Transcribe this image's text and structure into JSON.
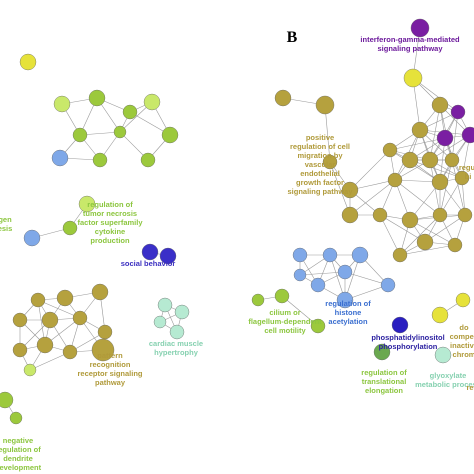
{
  "panel_label": "B",
  "labels": [
    {
      "lines": [
        "regulation of",
        "tumor necrosis",
        "factor superfamily",
        "cytokine",
        "production"
      ],
      "color": "#8cc63f"
    },
    {
      "lines": [
        "gen",
        "esis"
      ],
      "color": "#8cc63f"
    },
    {
      "lines": [
        "social behavior"
      ],
      "color": "#3b2fc0"
    },
    {
      "lines": [
        "cardiac muscle",
        "hypertrophy"
      ],
      "color": "#86d1b0"
    },
    {
      "lines": [
        "pattern",
        "recognition",
        "receptor signaling",
        "pathway"
      ],
      "color": "#b09a3a"
    },
    {
      "lines": [
        "negative",
        "regulation of",
        "dendrite",
        "development"
      ],
      "color": "#8cc63f"
    },
    {
      "lines": [
        "interferon-gamma-mediated",
        "signaling pathway"
      ],
      "color": "#6d1b9c"
    },
    {
      "lines": [
        "positive",
        "regulation of cell",
        "migration by",
        "vascular",
        "endothelial",
        "growth factor",
        "signaling pathway"
      ],
      "color": "#b09a3a"
    },
    {
      "lines": [
        "regulation of",
        "histone",
        "acetylation"
      ],
      "color": "#3b6fd0"
    },
    {
      "lines": [
        "cilium or",
        "flagellum-dependent",
        "cell motility"
      ],
      "color": "#8cc63f"
    },
    {
      "lines": [
        "phosphatidylinositol",
        "phosphorylation"
      ],
      "color": "#2a1fa0"
    },
    {
      "lines": [
        "regulation of",
        "translational",
        "elongation"
      ],
      "color": "#8cc63f"
    },
    {
      "lines": [
        "glyoxylate",
        "metabolic process"
      ],
      "color": "#86d1b0"
    },
    {
      "lines": [
        "regul",
        "bi"
      ],
      "color": "#b09a3a"
    },
    {
      "lines": [
        "do",
        "compen",
        "inactiva",
        "chrom"
      ],
      "color": "#b09a3a"
    },
    {
      "lines": [
        "re"
      ],
      "color": "#b09a3a"
    }
  ]
}
